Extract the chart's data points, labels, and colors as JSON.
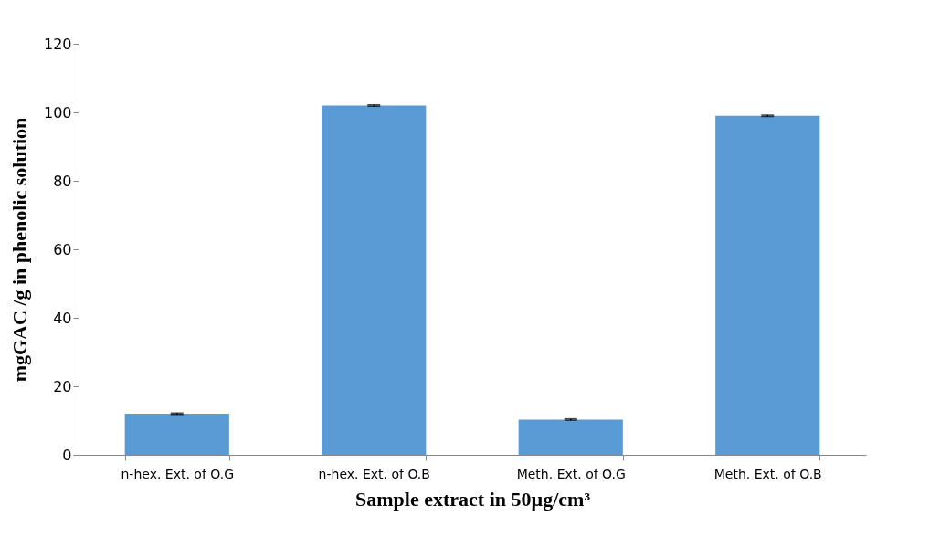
{
  "chart_data": {
    "type": "bar",
    "xlabel": "Sample extract in 50µg/cm³",
    "ylabel": "mgGAC /g in phenolic solution",
    "categories": [
      "n-hex. Ext. of O.G",
      "n-hex. Ext. of O.B",
      "Meth. Ext. of O.G",
      "Meth. Ext. of O.B"
    ],
    "values": [
      12,
      102,
      10.3,
      99
    ],
    "errors": [
      0.2,
      0.2,
      0.2,
      0.2
    ],
    "color": "#5b9bd5",
    "ylim": [
      0,
      120
    ],
    "yticks": [
      0,
      20,
      40,
      60,
      80,
      100,
      120
    ],
    "grid": false
  }
}
